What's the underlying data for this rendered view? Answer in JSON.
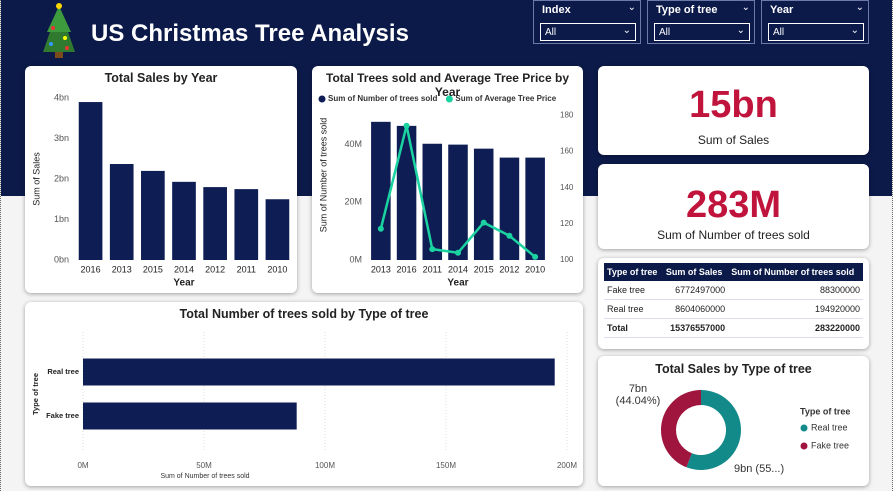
{
  "header": {
    "title": "US Christmas Tree Analysis"
  },
  "slicers": [
    {
      "label": "Index",
      "value": "All"
    },
    {
      "label": "Type of tree",
      "value": "All"
    },
    {
      "label": "Year",
      "value": "All"
    }
  ],
  "cards": [
    {
      "value": "15bn",
      "label": "Sum of Sales"
    },
    {
      "value": "283M",
      "label": "Sum of Number of trees sold"
    }
  ],
  "table": {
    "columns": [
      "Type of tree",
      "Sum of Sales",
      "Sum of Number of trees sold"
    ],
    "rows": [
      [
        "Fake tree",
        6772497000,
        88300000
      ],
      [
        "Real tree",
        8604060000,
        194920000
      ],
      [
        "Total",
        15376557000,
        283220000
      ]
    ]
  },
  "chart_data": [
    {
      "type": "bar",
      "title": "Total Sales by Year",
      "x_label": "Year",
      "y_label": "Sum of Sales",
      "categories": [
        "2016",
        "2013",
        "2015",
        "2014",
        "2012",
        "2011",
        "2010"
      ],
      "values": [
        3.9,
        2.37,
        2.2,
        1.93,
        1.8,
        1.75,
        1.5
      ],
      "color": "#0f1d55",
      "ylim": [
        0,
        4
      ],
      "yticks": [
        {
          "value": 0,
          "label": "0bn"
        },
        {
          "value": 1,
          "label": "1bn"
        },
        {
          "value": 2,
          "label": "2bn"
        },
        {
          "value": 3,
          "label": "3bn"
        },
        {
          "value": 4,
          "label": "4bn"
        }
      ]
    },
    {
      "type": "bar_line",
      "title": "Total Trees sold and Average Tree Price by Year",
      "x_label": "Year",
      "y_label": "Sum of Number of trees sold",
      "categories": [
        "2013",
        "2016",
        "2011",
        "2014",
        "2015",
        "2012",
        "2010"
      ],
      "series": [
        {
          "name": "Sum of Number of trees sold",
          "color": "#0f1d55",
          "values": [
            47.9,
            46.5,
            40.3,
            40,
            38.6,
            35.5,
            35.5
          ]
        },
        {
          "name": "Sum of Average Tree Price",
          "color": "#1ad3a0",
          "values": [
            117.3,
            174.3,
            106,
            104,
            120.7,
            113.4,
            101.7
          ],
          "axis": "y2"
        }
      ],
      "ylim": [
        0,
        52
      ],
      "yticks": [
        {
          "value": 0,
          "label": "0M"
        },
        {
          "value": 20,
          "label": "20M"
        },
        {
          "value": 40,
          "label": "40M"
        }
      ],
      "y2lim": [
        100,
        183
      ],
      "y2ticks": [
        100,
        120,
        140,
        160,
        180
      ]
    },
    {
      "type": "barh",
      "title": "Total Number of trees sold by Type of tree",
      "x_label": "Sum of Number of trees sold",
      "y_label": "Type of tree",
      "categories": [
        "Real tree",
        "Fake tree"
      ],
      "values": [
        194.92,
        88.3
      ],
      "color": "#0f1d55",
      "xlim": [
        0,
        200
      ],
      "xticks": [
        {
          "value": 0,
          "label": "0M"
        },
        {
          "value": 50,
          "label": "50M"
        },
        {
          "value": 100,
          "label": "100M"
        },
        {
          "value": 150,
          "label": "150M"
        },
        {
          "value": 200,
          "label": "200M"
        }
      ],
      "grid": true
    },
    {
      "type": "donut",
      "title": "Total Sales by Type of tree",
      "legend_title": "Type of tree",
      "categories": [
        "Real tree",
        "Fake tree"
      ],
      "values": [
        8.60406,
        6.772497
      ],
      "value_labels": [
        "9bn (55...)",
        "7bn (44.04%)"
      ],
      "colors": [
        "#138a8a",
        "#a0153e"
      ]
    }
  ]
}
